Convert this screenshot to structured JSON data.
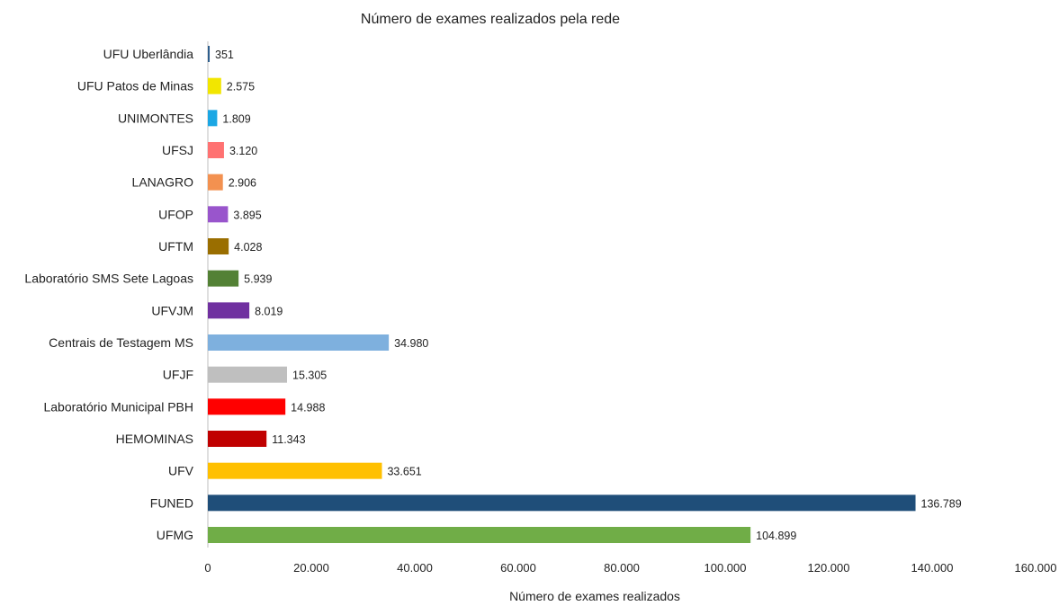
{
  "chart_data": {
    "type": "bar",
    "orientation": "horizontal",
    "title": "Número de exames realizados pela rede",
    "xlabel": "Número de exames realizados",
    "ylabel": "",
    "xlim": [
      0,
      160000
    ],
    "x_ticks": [
      0,
      20000,
      40000,
      60000,
      80000,
      100000,
      120000,
      140000,
      160000
    ],
    "x_tick_labels": [
      "0",
      "20.000",
      "40.000",
      "60.000",
      "80.000",
      "100.000",
      "120.000",
      "140.000",
      "160.000"
    ],
    "grid": false,
    "legend": "none",
    "categories": [
      "UFU Uberlândia",
      "UFU Patos de Minas",
      "UNIMONTES",
      "UFSJ",
      "LANAGRO",
      "UFOP",
      "UFTM",
      "Laboratório SMS Sete Lagoas",
      "UFVJM",
      "Centrais de Testagem MS",
      "UFJF",
      "Laboratório Municipal PBH",
      "HEMOMINAS",
      "UFV",
      "FUNED",
      "UFMG"
    ],
    "values": [
      351,
      2575,
      1809,
      3120,
      2906,
      3895,
      4028,
      5939,
      8019,
      34980,
      15305,
      14988,
      11343,
      33651,
      136789,
      104899
    ],
    "value_labels": [
      "351",
      "2.575",
      "1.809",
      "3.120",
      "2.906",
      "3.895",
      "4.028",
      "5.939",
      "8.019",
      "34.980",
      "15.305",
      "14.988",
      "11.343",
      "33.651",
      "136.789",
      "104.899"
    ],
    "colors": [
      "#2E5E8C",
      "#F2E600",
      "#1BA7E4",
      "#FF7272",
      "#F39150",
      "#9955CC",
      "#9A6E00",
      "#538135",
      "#7030A0",
      "#7EB0DE",
      "#BFBFBF",
      "#FF0000",
      "#C00000",
      "#FFC000",
      "#1F4E79",
      "#70AD47"
    ]
  }
}
